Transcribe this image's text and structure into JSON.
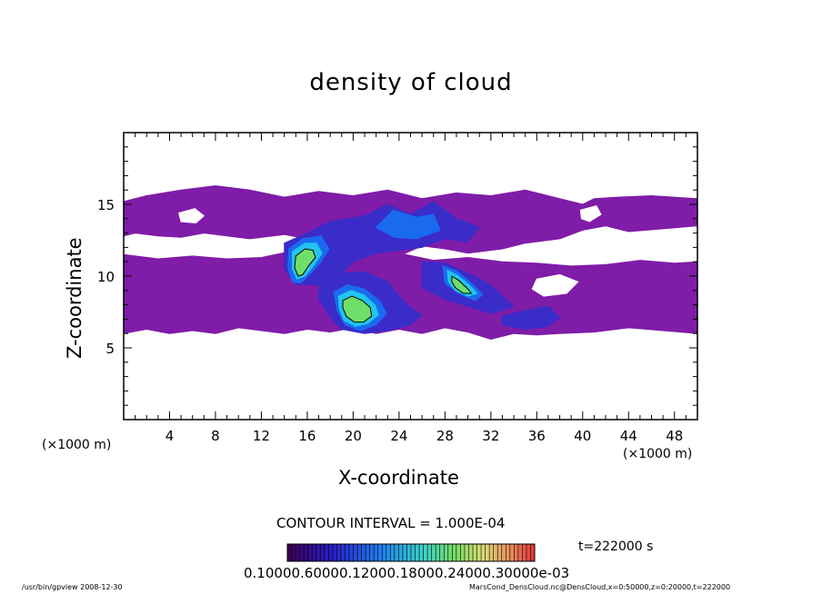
{
  "chart_data": {
    "type": "heatmap",
    "title": "density of cloud",
    "xlabel": "X-coordinate",
    "ylabel": "Z-coordinate",
    "x_unit_left": "(×1000 m)",
    "x_unit_right": "(×1000 m)",
    "xlim": [
      0,
      50
    ],
    "ylim": [
      0,
      20
    ],
    "xticks": [
      4,
      8,
      12,
      16,
      20,
      24,
      28,
      32,
      36,
      40,
      44,
      48
    ],
    "yticks": [
      5,
      10,
      15
    ],
    "contour_interval": "CONTOUR INTERVAL = 1.000E-04",
    "time": "t=222000 s",
    "colorbar_labels": "0.10000.60000.12000.18000.24000.30000e-03",
    "colors": {
      "purple": "#7f1ca8",
      "deep_blue": "#3a2cc8",
      "blue": "#1a6af0",
      "cyan": "#22c4f0",
      "green": "#6ee06a",
      "contour": "#000000"
    },
    "regions": [
      {
        "level": "purple",
        "poly": [
          [
            0,
            15.2
          ],
          [
            2,
            15.6
          ],
          [
            5,
            16.0
          ],
          [
            8,
            16.3
          ],
          [
            11,
            16.0
          ],
          [
            14,
            15.5
          ],
          [
            17,
            15.9
          ],
          [
            20,
            15.6
          ],
          [
            23,
            16.0
          ],
          [
            26,
            15.4
          ],
          [
            29,
            15.8
          ],
          [
            32,
            15.6
          ],
          [
            35,
            16.0
          ],
          [
            38,
            15.4
          ],
          [
            40,
            15.0
          ],
          [
            41,
            15.4
          ],
          [
            43,
            15.5
          ],
          [
            46,
            15.6
          ],
          [
            50,
            15.4
          ],
          [
            50,
            13.5
          ],
          [
            47,
            13.3
          ],
          [
            44,
            13.1
          ],
          [
            42,
            13.5
          ],
          [
            40,
            13.2
          ],
          [
            38,
            12.6
          ],
          [
            35,
            12.3
          ],
          [
            33,
            11.9
          ],
          [
            30,
            11.6
          ],
          [
            28,
            11.9
          ],
          [
            26,
            12.1
          ],
          [
            24,
            11.4
          ],
          [
            22,
            11.5
          ],
          [
            20,
            11.9
          ],
          [
            18,
            12.3
          ],
          [
            16,
            12.6
          ],
          [
            14,
            12.9
          ],
          [
            11,
            12.6
          ],
          [
            9,
            12.8
          ],
          [
            7,
            13.0
          ],
          [
            5,
            12.7
          ],
          [
            3,
            12.8
          ],
          [
            1,
            13.0
          ],
          [
            0,
            12.8
          ]
        ]
      },
      {
        "level": "purple",
        "poly": [
          [
            0,
            11.5
          ],
          [
            3,
            11.2
          ],
          [
            6,
            11.4
          ],
          [
            9,
            11.2
          ],
          [
            12,
            11.3
          ],
          [
            15,
            11.8
          ],
          [
            18,
            11.2
          ],
          [
            21,
            11.5
          ],
          [
            24,
            11.6
          ],
          [
            27,
            11.1
          ],
          [
            30,
            11.3
          ],
          [
            33,
            11.0
          ],
          [
            36,
            10.9
          ],
          [
            39,
            10.7
          ],
          [
            42,
            10.8
          ],
          [
            45,
            11.1
          ],
          [
            48,
            10.9
          ],
          [
            50,
            11.0
          ],
          [
            50,
            6.0
          ],
          [
            47,
            6.2
          ],
          [
            44,
            6.4
          ],
          [
            41,
            6.1
          ],
          [
            38,
            6.0
          ],
          [
            36,
            5.9
          ],
          [
            34,
            6.0
          ],
          [
            32,
            5.6
          ],
          [
            30,
            6.1
          ],
          [
            28,
            6.4
          ],
          [
            26,
            6.0
          ],
          [
            24,
            6.3
          ],
          [
            22,
            6.0
          ],
          [
            20,
            6.4
          ],
          [
            18,
            6.1
          ],
          [
            16,
            6.3
          ],
          [
            14,
            6.0
          ],
          [
            12,
            6.2
          ],
          [
            10,
            6.4
          ],
          [
            8,
            6.0
          ],
          [
            6,
            6.2
          ],
          [
            4,
            6.0
          ],
          [
            2,
            6.3
          ],
          [
            0,
            6.0
          ]
        ]
      },
      {
        "level": "deep_blue",
        "poly": [
          [
            14,
            12.3
          ],
          [
            16,
            13.0
          ],
          [
            18,
            13.8
          ],
          [
            21,
            14.2
          ],
          [
            23,
            15.0
          ],
          [
            25,
            14.3
          ],
          [
            27,
            15.2
          ],
          [
            29,
            14.0
          ],
          [
            31,
            13.4
          ],
          [
            30,
            12.4
          ],
          [
            28,
            12.6
          ],
          [
            26,
            12.0
          ],
          [
            24,
            11.8
          ],
          [
            22,
            11.6
          ],
          [
            20,
            11.0
          ],
          [
            19,
            10.2
          ],
          [
            17,
            9.4
          ],
          [
            15,
            9.4
          ],
          [
            14,
            10.5
          ]
        ]
      },
      {
        "level": "deep_blue",
        "poly": [
          [
            17,
            9.6
          ],
          [
            19,
            10.2
          ],
          [
            21,
            10.3
          ],
          [
            23,
            9.6
          ],
          [
            24,
            8.6
          ],
          [
            25,
            7.8
          ],
          [
            26,
            7.3
          ],
          [
            25,
            6.6
          ],
          [
            23,
            6.2
          ],
          [
            21,
            6.0
          ],
          [
            19,
            6.3
          ],
          [
            18,
            7.1
          ],
          [
            17,
            8.4
          ]
        ]
      },
      {
        "level": "deep_blue",
        "poly": [
          [
            26,
            11.0
          ],
          [
            28,
            10.9
          ],
          [
            30,
            10.2
          ],
          [
            32,
            9.4
          ],
          [
            33,
            8.6
          ],
          [
            34,
            7.9
          ],
          [
            32,
            7.4
          ],
          [
            30,
            7.9
          ],
          [
            28,
            8.4
          ],
          [
            26,
            9.2
          ]
        ]
      },
      {
        "level": "deep_blue",
        "poly": [
          [
            33,
            7.2
          ],
          [
            35,
            7.6
          ],
          [
            37,
            7.9
          ],
          [
            38,
            7.1
          ],
          [
            37,
            6.5
          ],
          [
            35,
            6.3
          ],
          [
            33,
            6.6
          ]
        ]
      },
      {
        "level": "blue",
        "poly": [
          [
            14.4,
            11.9
          ],
          [
            15.6,
            12.6
          ],
          [
            17.2,
            12.8
          ],
          [
            17.9,
            11.9
          ],
          [
            17.2,
            11.0
          ],
          [
            16.2,
            10.1
          ],
          [
            15.4,
            9.5
          ],
          [
            14.7,
            9.6
          ],
          [
            14.3,
            10.6
          ]
        ]
      },
      {
        "level": "blue",
        "poly": [
          [
            18.3,
            8.9
          ],
          [
            19.5,
            9.4
          ],
          [
            21.0,
            9.1
          ],
          [
            22.3,
            8.3
          ],
          [
            22.9,
            7.4
          ],
          [
            22.0,
            6.6
          ],
          [
            20.6,
            6.2
          ],
          [
            19.3,
            6.6
          ],
          [
            18.6,
            7.6
          ]
        ]
      },
      {
        "level": "blue",
        "poly": [
          [
            27.8,
            10.7
          ],
          [
            28.9,
            10.4
          ],
          [
            30.2,
            9.6
          ],
          [
            31.3,
            8.7
          ],
          [
            30.6,
            8.3
          ],
          [
            29.2,
            8.8
          ],
          [
            28.0,
            9.5
          ]
        ]
      },
      {
        "level": "blue",
        "poly": [
          [
            22.0,
            13.4
          ],
          [
            23.5,
            14.6
          ],
          [
            25.5,
            14.1
          ],
          [
            27.0,
            14.3
          ],
          [
            27.6,
            13.2
          ],
          [
            25.5,
            12.6
          ],
          [
            23.6,
            12.7
          ]
        ]
      },
      {
        "level": "cyan",
        "poly": [
          [
            14.7,
            11.7
          ],
          [
            15.8,
            12.3
          ],
          [
            16.8,
            12.3
          ],
          [
            17.3,
            11.6
          ],
          [
            16.6,
            10.8
          ],
          [
            15.8,
            10.0
          ],
          [
            15.1,
            9.8
          ],
          [
            14.7,
            10.5
          ]
        ]
      },
      {
        "level": "cyan",
        "poly": [
          [
            18.7,
            8.6
          ],
          [
            19.8,
            9.0
          ],
          [
            20.9,
            8.7
          ],
          [
            21.9,
            8.0
          ],
          [
            22.2,
            7.3
          ],
          [
            21.3,
            6.7
          ],
          [
            20.2,
            6.5
          ],
          [
            19.2,
            6.9
          ],
          [
            18.8,
            7.7
          ]
        ]
      },
      {
        "level": "cyan",
        "poly": [
          [
            28.2,
            10.4
          ],
          [
            29.0,
            10.1
          ],
          [
            30.1,
            9.4
          ],
          [
            30.8,
            8.8
          ],
          [
            30.0,
            8.6
          ],
          [
            28.9,
            9.0
          ],
          [
            28.3,
            9.6
          ]
        ]
      },
      {
        "level": "green",
        "poly": [
          [
            15.0,
            11.4
          ],
          [
            15.8,
            11.9
          ],
          [
            16.5,
            11.8
          ],
          [
            16.7,
            11.3
          ],
          [
            16.1,
            10.7
          ],
          [
            15.6,
            10.1
          ],
          [
            15.2,
            10.0
          ],
          [
            14.9,
            10.6
          ]
        ]
      },
      {
        "level": "green",
        "poly": [
          [
            19.1,
            8.3
          ],
          [
            19.9,
            8.6
          ],
          [
            20.8,
            8.3
          ],
          [
            21.5,
            7.8
          ],
          [
            21.6,
            7.2
          ],
          [
            20.9,
            6.8
          ],
          [
            20.1,
            6.8
          ],
          [
            19.4,
            7.2
          ],
          [
            19.1,
            7.8
          ]
        ]
      },
      {
        "level": "green",
        "poly": [
          [
            28.6,
            10.0
          ],
          [
            29.2,
            9.7
          ],
          [
            30.0,
            9.1
          ],
          [
            30.3,
            8.8
          ],
          [
            29.6,
            8.8
          ],
          [
            28.9,
            9.2
          ],
          [
            28.6,
            9.6
          ]
        ]
      }
    ],
    "holes": [
      {
        "poly": [
          [
            4.8,
            14.4
          ],
          [
            6.2,
            14.7
          ],
          [
            7.0,
            14.2
          ],
          [
            6.3,
            13.7
          ],
          [
            5.0,
            13.8
          ]
        ]
      },
      {
        "poly": [
          [
            39.8,
            14.6
          ],
          [
            41.2,
            14.9
          ],
          [
            41.6,
            14.3
          ],
          [
            40.6,
            13.8
          ],
          [
            39.9,
            14.0
          ]
        ]
      },
      {
        "poly": [
          [
            36.0,
            9.8
          ],
          [
            38.0,
            10.1
          ],
          [
            39.6,
            9.6
          ],
          [
            38.6,
            8.8
          ],
          [
            36.6,
            8.6
          ],
          [
            35.6,
            9.1
          ]
        ]
      }
    ]
  },
  "footer": {
    "left": "/usr/bin/gpview  2008-12-30",
    "right": "MarsCond_DensCloud.nc@DensCloud,x=0:50000,z=0:20000,t=222000"
  }
}
